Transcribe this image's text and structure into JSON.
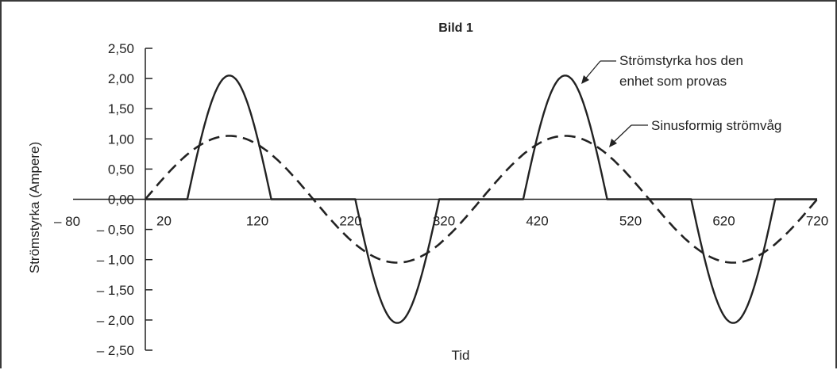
{
  "chart_data": {
    "type": "line",
    "title": "Bild 1",
    "xlabel": "Tid",
    "ylabel": "Strömstyrka (Ampere)",
    "xlim": [
      0,
      720
    ],
    "ylim": [
      -2.5,
      2.5
    ],
    "x_origin_label": "– 80",
    "x_ticks": [
      {
        "value": 20,
        "label": "20"
      },
      {
        "value": 120,
        "label": "120"
      },
      {
        "value": 220,
        "label": "220"
      },
      {
        "value": 320,
        "label": "320"
      },
      {
        "value": 420,
        "label": "420"
      },
      {
        "value": 520,
        "label": "520"
      },
      {
        "value": 620,
        "label": "620"
      },
      {
        "value": 720,
        "label": "720"
      }
    ],
    "y_ticks": [
      {
        "value": 2.5,
        "label": "2,50"
      },
      {
        "value": 2.0,
        "label": "2,00"
      },
      {
        "value": 1.5,
        "label": "1,50"
      },
      {
        "value": 1.0,
        "label": "1,00"
      },
      {
        "value": 0.5,
        "label": "0,50"
      },
      {
        "value": 0.0,
        "label": "0,00"
      },
      {
        "value": -0.5,
        "label": "– 0,50"
      },
      {
        "value": -1.0,
        "label": "– 1,00"
      },
      {
        "value": -1.5,
        "label": "– 1,50"
      },
      {
        "value": -2.0,
        "label": "– 2,00"
      },
      {
        "value": -2.5,
        "label": "– 2,50"
      }
    ],
    "grid": false,
    "series": [
      {
        "name": "Sinusformig strömvåg",
        "style": "dashed",
        "color": "#222222",
        "amplitude": 1.05,
        "period": 360,
        "points": [
          [
            0,
            0
          ],
          [
            20,
            0.36
          ],
          [
            40,
            0.67
          ],
          [
            60,
            0.91
          ],
          [
            80,
            1.03
          ],
          [
            90,
            1.05
          ],
          [
            100,
            1.03
          ],
          [
            120,
            0.91
          ],
          [
            140,
            0.67
          ],
          [
            160,
            0.36
          ],
          [
            180,
            0
          ],
          [
            200,
            -0.36
          ],
          [
            220,
            -0.67
          ],
          [
            240,
            -0.91
          ],
          [
            260,
            -1.03
          ],
          [
            270,
            -1.05
          ],
          [
            280,
            -1.03
          ],
          [
            300,
            -0.91
          ],
          [
            320,
            -0.67
          ],
          [
            340,
            -0.36
          ],
          [
            360,
            0
          ],
          [
            380,
            0.36
          ],
          [
            400,
            0.67
          ],
          [
            420,
            0.91
          ],
          [
            440,
            1.03
          ],
          [
            450,
            1.05
          ],
          [
            460,
            1.03
          ],
          [
            480,
            0.91
          ],
          [
            500,
            0.67
          ],
          [
            520,
            0.36
          ],
          [
            540,
            0
          ],
          [
            560,
            -0.36
          ],
          [
            580,
            -0.67
          ],
          [
            600,
            -0.91
          ],
          [
            620,
            -1.03
          ],
          [
            630,
            -1.05
          ],
          [
            640,
            -1.03
          ],
          [
            660,
            -0.91
          ],
          [
            680,
            -0.67
          ],
          [
            700,
            -0.36
          ],
          [
            720,
            0
          ]
        ]
      },
      {
        "name": "Strömstyrka hos den enhet som provas",
        "style": "solid",
        "color": "#222222",
        "peak": 2.05,
        "points": [
          [
            0,
            0
          ],
          [
            45,
            0
          ],
          [
            60,
            1.03
          ],
          [
            75,
            1.78
          ],
          [
            90,
            2.05
          ],
          [
            105,
            1.78
          ],
          [
            120,
            1.03
          ],
          [
            135,
            0
          ],
          [
            225,
            0
          ],
          [
            240,
            -1.03
          ],
          [
            255,
            -1.78
          ],
          [
            270,
            -2.05
          ],
          [
            285,
            -1.78
          ],
          [
            300,
            -1.03
          ],
          [
            315,
            0
          ],
          [
            405,
            0
          ],
          [
            420,
            1.03
          ],
          [
            435,
            1.78
          ],
          [
            450,
            2.05
          ],
          [
            465,
            1.78
          ],
          [
            480,
            1.03
          ],
          [
            495,
            0
          ],
          [
            585,
            0
          ],
          [
            600,
            -1.03
          ],
          [
            615,
            -1.78
          ],
          [
            630,
            -2.05
          ],
          [
            645,
            -1.78
          ],
          [
            660,
            -1.03
          ],
          [
            675,
            0
          ],
          [
            720,
            0
          ]
        ]
      }
    ],
    "annotations": [
      {
        "lines": [
          "Strömstyrka hos den",
          "enhet som provas"
        ],
        "series": "Strömstyrka hos den enhet som provas"
      },
      {
        "lines": [
          "Sinusformig strömvåg"
        ],
        "series": "Sinusformig strömvåg"
      }
    ]
  }
}
